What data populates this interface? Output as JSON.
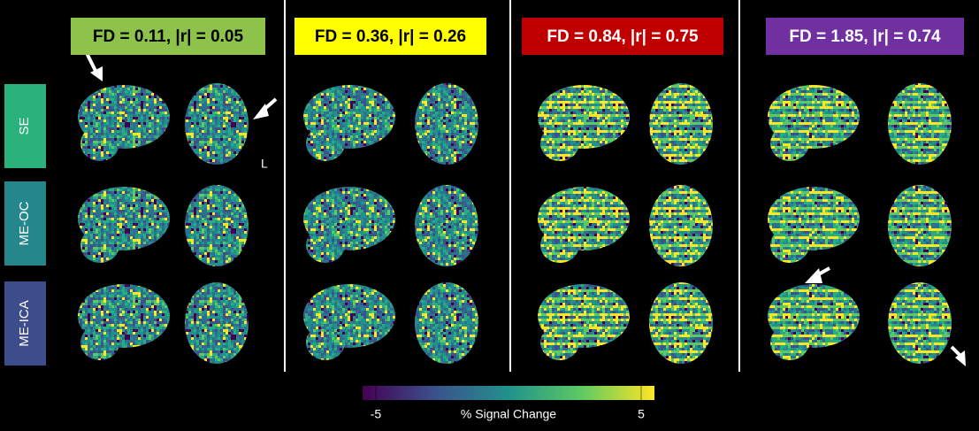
{
  "panels": [
    {
      "header": "FD = 0.11, |r| = 0.05",
      "color": "#8dc34a",
      "text_color": "#000000"
    },
    {
      "header": "FD = 0.36, |r| = 0.26",
      "color": "#ffff00",
      "text_color": "#000000"
    },
    {
      "header": "FD = 0.84, |r| = 0.75",
      "color": "#c00000",
      "text_color": "#ffffff"
    },
    {
      "header": "FD = 1.85, |r| = 0.74",
      "color": "#7030a0",
      "text_color": "#ffffff"
    }
  ],
  "rows": [
    {
      "label": "SE",
      "color": "#2bb27c"
    },
    {
      "label": "ME-OC",
      "color": "#24878c"
    },
    {
      "label": "ME-ICA",
      "color": "#3d4c8a"
    }
  ],
  "orientation_label": "L",
  "colorbar": {
    "label": "% Signal Change",
    "range": [
      -5.5,
      5.5
    ],
    "ticks": [
      -5,
      5
    ]
  }
}
